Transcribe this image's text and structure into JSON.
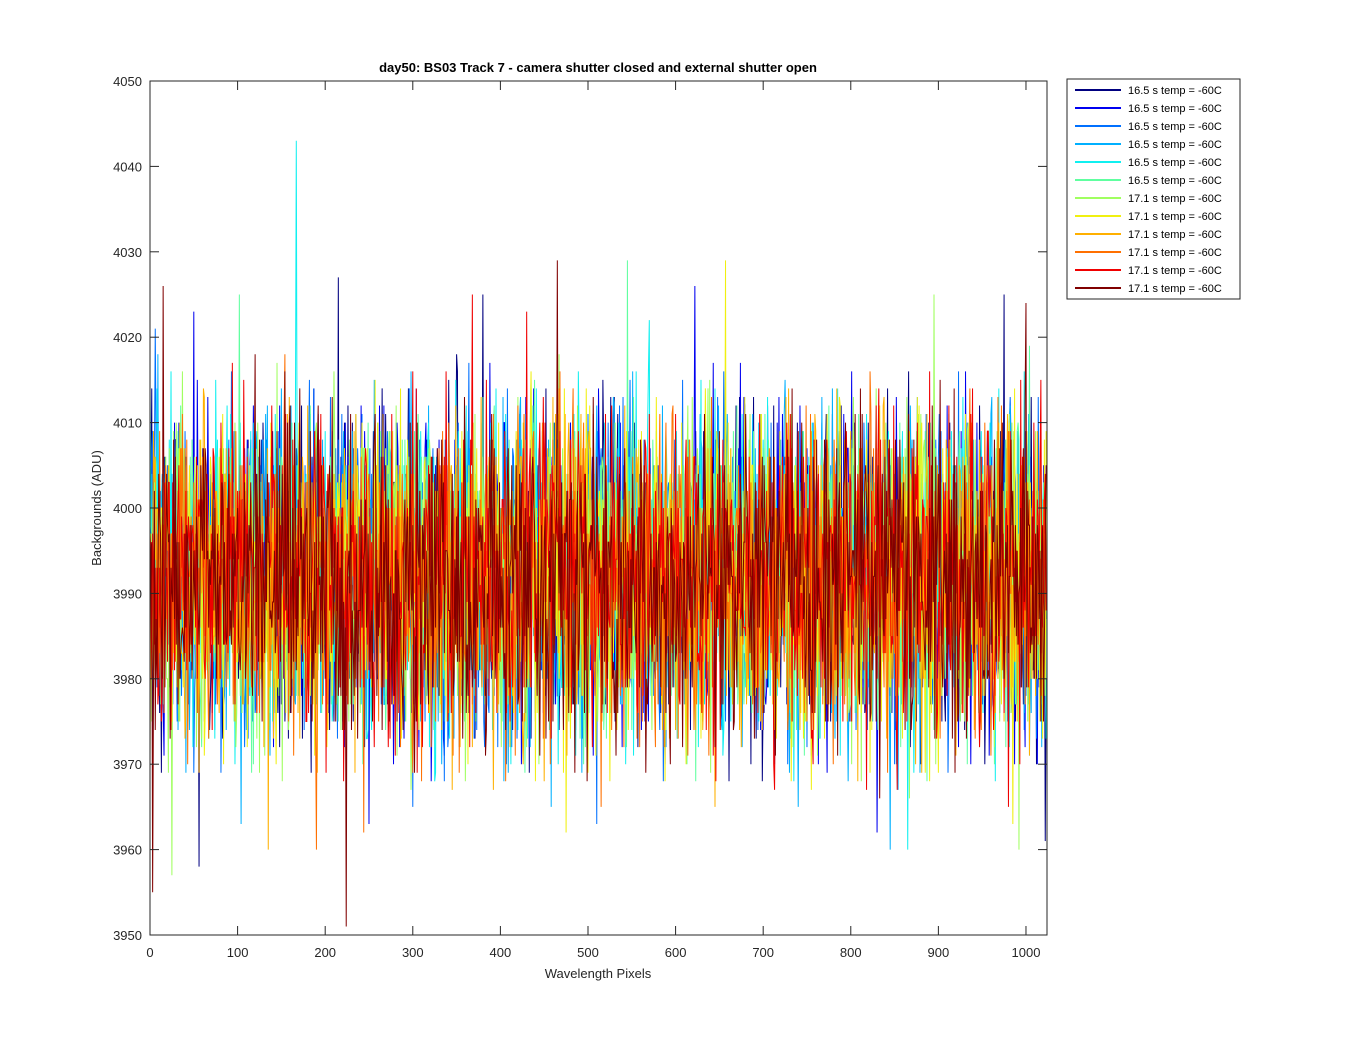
{
  "chart_data": {
    "type": "line",
    "title": "day50: BS03  Track 7 - camera shutter closed and external shutter open",
    "xlabel": "Wavelength Pixels",
    "ylabel": "Backgrounds (ADU)",
    "xlim": [
      0,
      1024
    ],
    "ylim": [
      3950,
      4050
    ],
    "x_ticks": [
      0,
      100,
      200,
      300,
      400,
      500,
      600,
      700,
      800,
      900,
      1000
    ],
    "y_ticks": [
      3950,
      3960,
      3970,
      3980,
      3990,
      4000,
      4010,
      4020,
      4030,
      4040,
      4050
    ],
    "grid": false,
    "legend_position": "outside-top-right",
    "num_points": 1024,
    "series": [
      {
        "name": "16.5 s temp = -60C",
        "color": "#000080",
        "mean": 3992,
        "noise": 9.5,
        "spikes": [
          [
            56,
            3958
          ],
          [
            215,
            4027
          ],
          [
            380,
            4025
          ],
          [
            975,
            4025
          ],
          [
            1022,
            3961
          ]
        ]
      },
      {
        "name": "16.5 s temp = -60C",
        "color": "#0000f0",
        "mean": 3992,
        "noise": 9.5,
        "spikes": [
          [
            50,
            4023
          ],
          [
            250,
            3963
          ],
          [
            622,
            4026
          ],
          [
            830,
            3962
          ]
        ]
      },
      {
        "name": "16.5 s temp = -60C",
        "color": "#0070ff",
        "mean": 3992,
        "noise": 9.5,
        "spikes": [
          [
            6,
            4021
          ],
          [
            300,
            3965
          ],
          [
            510,
            3963
          ]
        ]
      },
      {
        "name": "16.5 s temp = -60C",
        "color": "#00b0ff",
        "mean": 3992,
        "noise": 9.5,
        "spikes": [
          [
            104,
            3963
          ],
          [
            740,
            3965
          ],
          [
            845,
            3960
          ]
        ]
      },
      {
        "name": "16.5 s temp = -60C",
        "color": "#10f0f0",
        "mean": 3992,
        "noise": 9.5,
        "spikes": [
          [
            167,
            4043
          ],
          [
            570,
            4022
          ],
          [
            865,
            3960
          ]
        ]
      },
      {
        "name": "16.5 s temp = -60C",
        "color": "#60ffa0",
        "mean": 3992,
        "noise": 9.5,
        "spikes": [
          [
            102,
            4025
          ],
          [
            545,
            4029
          ],
          [
            1004,
            4019
          ]
        ]
      },
      {
        "name": "17.1 s temp = -60C",
        "color": "#a0ff60",
        "mean": 3992,
        "noise": 9.5,
        "spikes": [
          [
            25,
            3957
          ],
          [
            895,
            4025
          ],
          [
            992,
            3960
          ]
        ]
      },
      {
        "name": "17.1 s temp = -60C",
        "color": "#f0f010",
        "mean": 3992,
        "noise": 9.5,
        "spikes": [
          [
            657,
            4029
          ],
          [
            475,
            3962
          ],
          [
            985,
            3963
          ]
        ]
      },
      {
        "name": "17.1 s temp = -60C",
        "color": "#ffb000",
        "mean": 3992,
        "noise": 9.5,
        "spikes": [
          [
            135,
            3960
          ],
          [
            392,
            3967
          ],
          [
            645,
            3965
          ]
        ]
      },
      {
        "name": "17.1 s temp = -60C",
        "color": "#ff7000",
        "mean": 3992,
        "noise": 9.5,
        "spikes": [
          [
            190,
            3960
          ],
          [
            244,
            3962
          ],
          [
            515,
            3965
          ]
        ]
      },
      {
        "name": "17.1 s temp = -60C",
        "color": "#f00000",
        "mean": 3992,
        "noise": 9.5,
        "spikes": [
          [
            368,
            4025
          ],
          [
            430,
            4023
          ],
          [
            980,
            3965
          ]
        ]
      },
      {
        "name": "17.1 s temp = -60C",
        "color": "#800000",
        "mean": 3992,
        "noise": 9.5,
        "spikes": [
          [
            15,
            4026
          ],
          [
            3,
            3955
          ],
          [
            224,
            3951
          ],
          [
            465,
            4029
          ],
          [
            1000,
            4024
          ]
        ]
      }
    ]
  }
}
